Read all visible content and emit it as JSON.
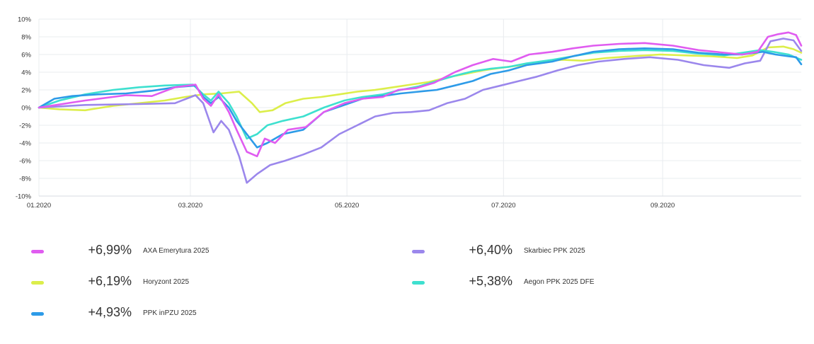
{
  "chart_data": {
    "type": "line",
    "x_ticks": [
      "01.2020",
      "03.2020",
      "05.2020",
      "07.2020",
      "09.2020"
    ],
    "y_ticks": [
      "10%",
      "8%",
      "6%",
      "4%",
      "2%",
      "0%",
      "-2%",
      "-4%",
      "-6%",
      "-8%",
      "-10%"
    ],
    "ylim": [
      -10,
      10
    ],
    "xlim": [
      "2020-01-02",
      "2020-10-25"
    ],
    "grid": true,
    "series": [
      {
        "name": "AXA Emerytura 2025",
        "color": "#e05cf0",
        "return": "+6,99%",
        "points": [
          [
            "2020-01-02",
            0
          ],
          [
            "2020-01-20",
            0.8
          ],
          [
            "2020-02-05",
            1.4
          ],
          [
            "2020-02-15",
            1.3
          ],
          [
            "2020-02-24",
            2.3
          ],
          [
            "2020-03-03",
            2.6
          ],
          [
            "2020-03-06",
            1.0
          ],
          [
            "2020-03-09",
            0.2
          ],
          [
            "2020-03-12",
            1.5
          ],
          [
            "2020-03-16",
            -0.5
          ],
          [
            "2020-03-19",
            -2.5
          ],
          [
            "2020-03-23",
            -5.0
          ],
          [
            "2020-03-27",
            -5.5
          ],
          [
            "2020-03-30",
            -3.5
          ],
          [
            "2020-04-03",
            -4.0
          ],
          [
            "2020-04-08",
            -2.5
          ],
          [
            "2020-04-15",
            -2.2
          ],
          [
            "2020-04-22",
            -0.5
          ],
          [
            "2020-04-30",
            0.5
          ],
          [
            "2020-05-07",
            1.0
          ],
          [
            "2020-05-15",
            1.2
          ],
          [
            "2020-05-21",
            2.0
          ],
          [
            "2020-05-28",
            2.2
          ],
          [
            "2020-06-04",
            2.8
          ],
          [
            "2020-06-12",
            4.0
          ],
          [
            "2020-06-19",
            4.8
          ],
          [
            "2020-06-27",
            5.5
          ],
          [
            "2020-07-04",
            5.2
          ],
          [
            "2020-07-11",
            6.0
          ],
          [
            "2020-07-20",
            6.3
          ],
          [
            "2020-07-28",
            6.7
          ],
          [
            "2020-08-05",
            7.0
          ],
          [
            "2020-08-15",
            7.2
          ],
          [
            "2020-08-25",
            7.3
          ],
          [
            "2020-09-05",
            7.0
          ],
          [
            "2020-09-15",
            6.5
          ],
          [
            "2020-09-25",
            6.2
          ],
          [
            "2020-10-02",
            6.0
          ],
          [
            "2020-10-08",
            6.3
          ],
          [
            "2020-10-12",
            8.0
          ],
          [
            "2020-10-16",
            8.3
          ],
          [
            "2020-10-20",
            8.5
          ],
          [
            "2020-10-23",
            8.2
          ],
          [
            "2020-10-25",
            7.0
          ]
        ]
      },
      {
        "name": "Horyzont 2025",
        "color": "#dcee4a",
        "return": "+6,19%",
        "points": [
          [
            "2020-01-02",
            0
          ],
          [
            "2020-01-10",
            -0.2
          ],
          [
            "2020-01-20",
            -0.3
          ],
          [
            "2020-01-31",
            0.2
          ],
          [
            "2020-02-10",
            0.5
          ],
          [
            "2020-02-20",
            0.8
          ],
          [
            "2020-02-28",
            1.2
          ],
          [
            "2020-03-06",
            1.5
          ],
          [
            "2020-03-13",
            1.6
          ],
          [
            "2020-03-20",
            1.8
          ],
          [
            "2020-03-25",
            0.5
          ],
          [
            "2020-03-28",
            -0.5
          ],
          [
            "2020-04-02",
            -0.3
          ],
          [
            "2020-04-07",
            0.5
          ],
          [
            "2020-04-14",
            1.0
          ],
          [
            "2020-04-21",
            1.2
          ],
          [
            "2020-04-28",
            1.5
          ],
          [
            "2020-05-05",
            1.8
          ],
          [
            "2020-05-12",
            2.0
          ],
          [
            "2020-05-19",
            2.3
          ],
          [
            "2020-05-26",
            2.6
          ],
          [
            "2020-06-02",
            2.9
          ],
          [
            "2020-06-09",
            3.4
          ],
          [
            "2020-06-16",
            3.8
          ],
          [
            "2020-06-23",
            4.2
          ],
          [
            "2020-06-30",
            4.5
          ],
          [
            "2020-07-08",
            4.8
          ],
          [
            "2020-07-16",
            5.2
          ],
          [
            "2020-07-24",
            5.4
          ],
          [
            "2020-08-01",
            5.3
          ],
          [
            "2020-08-10",
            5.6
          ],
          [
            "2020-08-20",
            5.8
          ],
          [
            "2020-08-31",
            6.0
          ],
          [
            "2020-09-10",
            5.9
          ],
          [
            "2020-09-20",
            5.8
          ],
          [
            "2020-09-30",
            5.6
          ],
          [
            "2020-10-06",
            5.9
          ],
          [
            "2020-10-12",
            6.8
          ],
          [
            "2020-10-18",
            6.9
          ],
          [
            "2020-10-22",
            6.6
          ],
          [
            "2020-10-25",
            6.2
          ]
        ]
      },
      {
        "name": "PPK inPZU 2025",
        "color": "#2d9be8",
        "return": "+4,93%",
        "points": [
          [
            "2020-01-02",
            0
          ],
          [
            "2020-01-08",
            1.0
          ],
          [
            "2020-01-15",
            1.3
          ],
          [
            "2020-01-25",
            1.5
          ],
          [
            "2020-02-05",
            1.6
          ],
          [
            "2020-02-15",
            1.9
          ],
          [
            "2020-02-24",
            2.3
          ],
          [
            "2020-03-03",
            2.5
          ],
          [
            "2020-03-06",
            1.2
          ],
          [
            "2020-03-09",
            0.5
          ],
          [
            "2020-03-12",
            1.2
          ],
          [
            "2020-03-16",
            0
          ],
          [
            "2020-03-19",
            -1.5
          ],
          [
            "2020-03-23",
            -3.0
          ],
          [
            "2020-03-27",
            -4.5
          ],
          [
            "2020-03-31",
            -4.0
          ],
          [
            "2020-04-06",
            -3.0
          ],
          [
            "2020-04-14",
            -2.5
          ],
          [
            "2020-04-22",
            -0.5
          ],
          [
            "2020-04-30",
            0.3
          ],
          [
            "2020-05-07",
            1.0
          ],
          [
            "2020-05-15",
            1.3
          ],
          [
            "2020-05-22",
            1.6
          ],
          [
            "2020-05-29",
            1.8
          ],
          [
            "2020-06-05",
            2.0
          ],
          [
            "2020-06-12",
            2.5
          ],
          [
            "2020-06-19",
            3.0
          ],
          [
            "2020-06-26",
            3.8
          ],
          [
            "2020-07-03",
            4.2
          ],
          [
            "2020-07-10",
            4.8
          ],
          [
            "2020-07-20",
            5.2
          ],
          [
            "2020-07-28",
            5.8
          ],
          [
            "2020-08-05",
            6.3
          ],
          [
            "2020-08-15",
            6.6
          ],
          [
            "2020-08-25",
            6.7
          ],
          [
            "2020-09-05",
            6.6
          ],
          [
            "2020-09-15",
            6.2
          ],
          [
            "2020-09-25",
            6.0
          ],
          [
            "2020-10-02",
            6.0
          ],
          [
            "2020-10-10",
            6.3
          ],
          [
            "2020-10-15",
            6.0
          ],
          [
            "2020-10-20",
            5.8
          ],
          [
            "2020-10-23",
            5.7
          ],
          [
            "2020-10-25",
            4.9
          ]
        ]
      },
      {
        "name": "Skarbiec PPK 2025",
        "color": "#9b87ec",
        "return": "+6,40%",
        "points": [
          [
            "2020-01-02",
            0
          ],
          [
            "2020-01-20",
            0.3
          ],
          [
            "2020-02-10",
            0.4
          ],
          [
            "2020-02-24",
            0.5
          ],
          [
            "2020-03-03",
            1.4
          ],
          [
            "2020-03-06",
            0.5
          ],
          [
            "2020-03-10",
            -2.8
          ],
          [
            "2020-03-13",
            -1.5
          ],
          [
            "2020-03-16",
            -2.5
          ],
          [
            "2020-03-20",
            -5.5
          ],
          [
            "2020-03-23",
            -8.5
          ],
          [
            "2020-03-27",
            -7.5
          ],
          [
            "2020-04-01",
            -6.5
          ],
          [
            "2020-04-07",
            -6.0
          ],
          [
            "2020-04-14",
            -5.3
          ],
          [
            "2020-04-21",
            -4.5
          ],
          [
            "2020-04-28",
            -3.0
          ],
          [
            "2020-05-05",
            -2.0
          ],
          [
            "2020-05-12",
            -1.0
          ],
          [
            "2020-05-19",
            -0.6
          ],
          [
            "2020-05-26",
            -0.5
          ],
          [
            "2020-06-02",
            -0.3
          ],
          [
            "2020-06-09",
            0.5
          ],
          [
            "2020-06-16",
            1.0
          ],
          [
            "2020-06-23",
            2.0
          ],
          [
            "2020-06-30",
            2.5
          ],
          [
            "2020-07-07",
            3.0
          ],
          [
            "2020-07-14",
            3.5
          ],
          [
            "2020-07-22",
            4.2
          ],
          [
            "2020-07-30",
            4.8
          ],
          [
            "2020-08-07",
            5.2
          ],
          [
            "2020-08-17",
            5.5
          ],
          [
            "2020-08-27",
            5.7
          ],
          [
            "2020-09-07",
            5.4
          ],
          [
            "2020-09-17",
            4.8
          ],
          [
            "2020-09-27",
            4.5
          ],
          [
            "2020-10-03",
            5.0
          ],
          [
            "2020-10-09",
            5.3
          ],
          [
            "2020-10-13",
            7.5
          ],
          [
            "2020-10-18",
            7.8
          ],
          [
            "2020-10-22",
            7.6
          ],
          [
            "2020-10-25",
            6.4
          ]
        ]
      },
      {
        "name": "Aegon PPK 2025 DFE",
        "color": "#3ee0cf",
        "return": "+5,38%",
        "points": [
          [
            "2020-01-02",
            0
          ],
          [
            "2020-01-10",
            0.8
          ],
          [
            "2020-01-20",
            1.5
          ],
          [
            "2020-01-31",
            2.0
          ],
          [
            "2020-02-10",
            2.3
          ],
          [
            "2020-02-20",
            2.5
          ],
          [
            "2020-03-02",
            2.6
          ],
          [
            "2020-03-06",
            1.5
          ],
          [
            "2020-03-09",
            0.8
          ],
          [
            "2020-03-12",
            1.8
          ],
          [
            "2020-03-16",
            0.5
          ],
          [
            "2020-03-19",
            -1.0
          ],
          [
            "2020-03-23",
            -3.5
          ],
          [
            "2020-03-27",
            -3.0
          ],
          [
            "2020-03-31",
            -2.0
          ],
          [
            "2020-04-06",
            -1.5
          ],
          [
            "2020-04-14",
            -1.0
          ],
          [
            "2020-04-22",
            0
          ],
          [
            "2020-04-30",
            0.8
          ],
          [
            "2020-05-07",
            1.2
          ],
          [
            "2020-05-15",
            1.5
          ],
          [
            "2020-05-22",
            2.0
          ],
          [
            "2020-05-29",
            2.4
          ],
          [
            "2020-06-05",
            3.0
          ],
          [
            "2020-06-12",
            3.6
          ],
          [
            "2020-06-19",
            4.1
          ],
          [
            "2020-06-26",
            4.4
          ],
          [
            "2020-07-03",
            4.6
          ],
          [
            "2020-07-10",
            5.0
          ],
          [
            "2020-07-20",
            5.4
          ],
          [
            "2020-07-28",
            5.8
          ],
          [
            "2020-08-05",
            6.2
          ],
          [
            "2020-08-15",
            6.4
          ],
          [
            "2020-08-25",
            6.5
          ],
          [
            "2020-09-05",
            6.4
          ],
          [
            "2020-09-15",
            6.1
          ],
          [
            "2020-09-25",
            5.9
          ],
          [
            "2020-10-02",
            6.2
          ],
          [
            "2020-10-09",
            6.5
          ],
          [
            "2020-10-14",
            6.3
          ],
          [
            "2020-10-20",
            6.0
          ],
          [
            "2020-10-25",
            5.4
          ]
        ]
      }
    ]
  },
  "legend_order": [
    0,
    3,
    1,
    4,
    2
  ]
}
